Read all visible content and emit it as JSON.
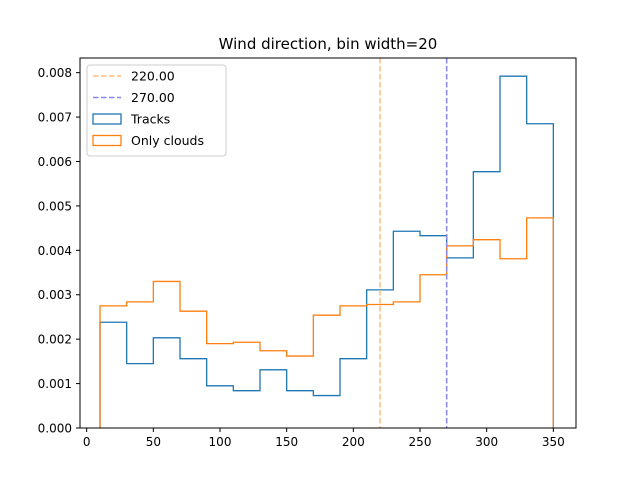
{
  "chart_data": {
    "type": "histogram",
    "title": "Wind direction, bin width=20",
    "xlabel": "",
    "ylabel": "",
    "xlim": [
      -5,
      367
    ],
    "ylim": [
      0,
      0.00833
    ],
    "xticks": [
      0,
      50,
      100,
      150,
      200,
      250,
      300,
      350
    ],
    "yticks": [
      0.0,
      0.001,
      0.002,
      0.003,
      0.004,
      0.005,
      0.006,
      0.007,
      0.008
    ],
    "ytick_labels": [
      "0.000",
      "0.001",
      "0.002",
      "0.003",
      "0.004",
      "0.005",
      "0.006",
      "0.007",
      "0.008"
    ],
    "bin_edges": [
      10,
      30,
      50,
      70,
      90,
      110,
      130,
      150,
      170,
      190,
      210,
      230,
      250,
      270,
      290,
      310,
      330,
      350
    ],
    "grid": false,
    "legend_position": "upper-left",
    "series": [
      {
        "name": "Tracks",
        "color": "#1f77b4",
        "style": "step",
        "values": [
          0.00238,
          0.00145,
          0.00203,
          0.00156,
          0.00095,
          0.00084,
          0.00131,
          0.00084,
          0.00073,
          0.00156,
          0.00311,
          0.00443,
          0.00433,
          0.00383,
          0.00577,
          0.00792,
          0.00685
        ]
      },
      {
        "name": "Only clouds",
        "color": "#ff7f0e",
        "style": "step",
        "values": [
          0.00275,
          0.00284,
          0.0033,
          0.00263,
          0.0019,
          0.00193,
          0.00174,
          0.00162,
          0.00254,
          0.00275,
          0.00278,
          0.00284,
          0.00345,
          0.0041,
          0.00424,
          0.00381,
          0.00473
        ]
      }
    ],
    "vlines": [
      {
        "label": "220.00",
        "x": 220,
        "color": "#ffbb78",
        "style": "dashed"
      },
      {
        "label": "270.00",
        "x": 270,
        "color": "#8888ee",
        "style": "dashed"
      }
    ]
  }
}
